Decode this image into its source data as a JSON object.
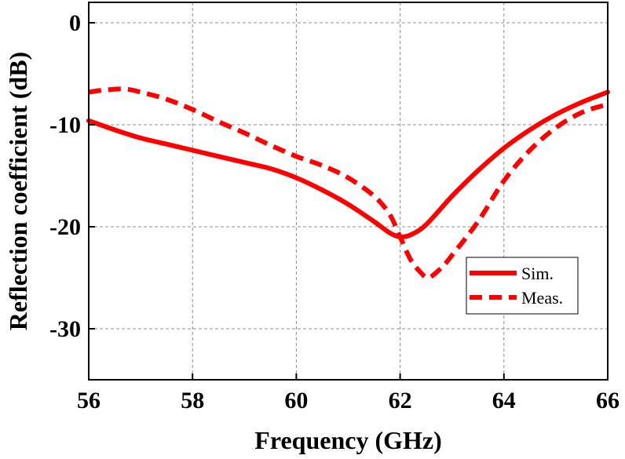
{
  "chart_data": {
    "type": "line",
    "title": "",
    "xlabel": "Frequency (GHz)",
    "ylabel": "Reflection coefficient (dB)",
    "xlim": [
      56,
      66
    ],
    "ylim": [
      -35,
      2
    ],
    "xticks": [
      56,
      58,
      60,
      62,
      64,
      66
    ],
    "yticks": [
      0,
      -10,
      -20,
      -30
    ],
    "xtick_labels": [
      "56",
      "58",
      "60",
      "62",
      "64",
      "66"
    ],
    "ytick_labels": [
      "0",
      "-10",
      "-20",
      "-30"
    ],
    "grid": true,
    "legend_position": "bottom-right",
    "series": [
      {
        "name": "Sim.",
        "style": "solid",
        "color": "#ff0000",
        "x": [
          56,
          56.5,
          57,
          57.5,
          58,
          58.5,
          59,
          59.5,
          60,
          60.5,
          61,
          61.5,
          61.8,
          62,
          62.2,
          62.5,
          63,
          63.5,
          64,
          64.5,
          65,
          65.5,
          66
        ],
        "y": [
          -9.6,
          -10.5,
          -11.3,
          -11.9,
          -12.5,
          -13.1,
          -13.7,
          -14.3,
          -15.2,
          -16.4,
          -17.8,
          -19.5,
          -20.6,
          -21.0,
          -20.8,
          -19.8,
          -17.0,
          -14.5,
          -12.3,
          -10.5,
          -9.0,
          -7.8,
          -6.8
        ]
      },
      {
        "name": "Meas.",
        "style": "dashed",
        "color": "#ff0000",
        "x": [
          56,
          56.3,
          56.7,
          57,
          57.5,
          58,
          58.5,
          59,
          59.5,
          60,
          60.5,
          61,
          61.5,
          61.8,
          62,
          62.2,
          62.4,
          62.55,
          62.8,
          63,
          63.5,
          64,
          64.5,
          65,
          65.5,
          66
        ],
        "y": [
          -6.8,
          -6.6,
          -6.5,
          -6.8,
          -7.5,
          -8.5,
          -9.7,
          -10.8,
          -12.0,
          -13.1,
          -14.0,
          -15.2,
          -17.0,
          -18.8,
          -21.0,
          -23.2,
          -24.5,
          -25.0,
          -24.0,
          -22.8,
          -19.5,
          -15.5,
          -12.5,
          -10.3,
          -8.8,
          -8.0
        ]
      }
    ]
  }
}
